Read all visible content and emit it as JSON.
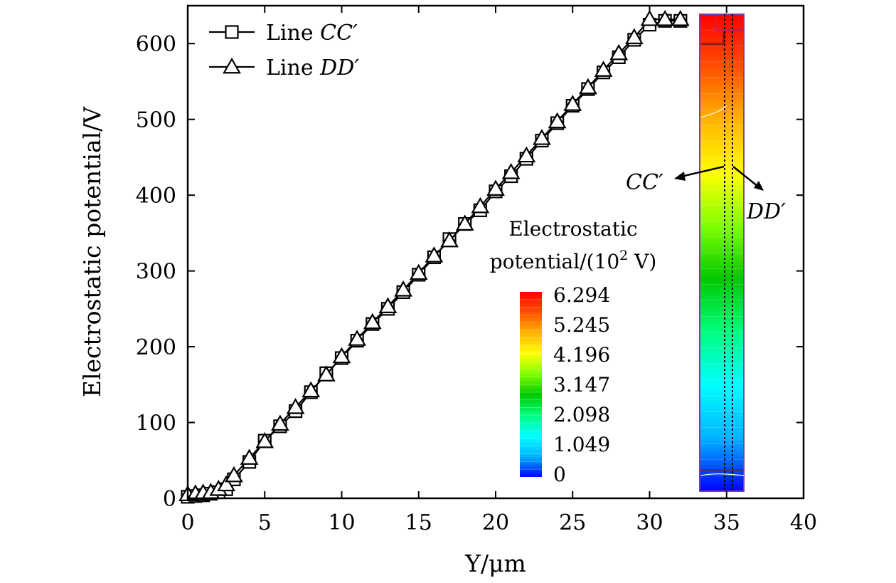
{
  "chart_data": {
    "type": "line",
    "xlabel": "Y/μm",
    "ylabel": "Electrostatic potential/V",
    "xlim": [
      0,
      40
    ],
    "ylim": [
      0,
      650
    ],
    "xticks": [
      0,
      5,
      10,
      15,
      20,
      25,
      30,
      35,
      40
    ],
    "yticks": [
      0,
      100,
      200,
      300,
      400,
      500,
      600
    ],
    "grid": false,
    "legend_position": "top-left",
    "series": [
      {
        "name": "Line CC′",
        "marker": "square",
        "x": [
          0,
          0.5,
          1,
          1.5,
          2,
          2.5,
          3,
          4,
          5,
          6,
          7,
          8,
          9,
          10,
          11,
          12,
          13,
          14,
          15,
          16,
          17,
          18,
          19,
          20,
          21,
          22,
          23,
          24,
          25,
          26,
          27,
          28,
          29,
          30,
          31,
          32
        ],
        "y": [
          2,
          3,
          4,
          6,
          8,
          12,
          25,
          48,
          76,
          95,
          115,
          140,
          165,
          185,
          208,
          230,
          250,
          272,
          295,
          318,
          342,
          362,
          380,
          405,
          425,
          448,
          472,
          495,
          518,
          540,
          562,
          582,
          605,
          625,
          630,
          630
        ]
      },
      {
        "name": "Line DD′",
        "marker": "triangle",
        "x": [
          0,
          0.5,
          1,
          1.5,
          2,
          2.5,
          3,
          4,
          5,
          6,
          7,
          8,
          9,
          10,
          11,
          12,
          13,
          14,
          15,
          16,
          17,
          18,
          19,
          20,
          21,
          22,
          23,
          24,
          25,
          26,
          27,
          28,
          29,
          30,
          31,
          32
        ],
        "y": [
          5,
          6,
          7,
          8,
          12,
          18,
          30,
          53,
          75,
          98,
          120,
          142,
          163,
          187,
          210,
          232,
          253,
          275,
          297,
          320,
          340,
          362,
          385,
          408,
          430,
          452,
          475,
          497,
          520,
          542,
          565,
          587,
          608,
          632,
          632,
          632
        ]
      }
    ],
    "colorbar": {
      "title_line1": "Electrostatic",
      "title_line2_prefix": "potential/(10",
      "title_line2_sup": "2",
      "title_line2_suffix": " V)",
      "labels": [
        "6.294",
        "5.245",
        "4.196",
        "3.147",
        "2.098",
        "1.049",
        "0"
      ],
      "min": 0,
      "max": 6.294
    },
    "annotations": [
      {
        "text": "CC′"
      },
      {
        "text": "DD′"
      }
    ],
    "legend": [
      {
        "prefix": "Line ",
        "label": "CC′"
      },
      {
        "prefix": "Line ",
        "label": "DD′"
      }
    ]
  },
  "colors": {
    "axis": "#000000",
    "line": "#000000",
    "marker_fill": "#ffffff",
    "colormap": [
      "#0000ff",
      "#00b4ff",
      "#00ffff",
      "#00ff80",
      "#00c800",
      "#80ff00",
      "#ffff00",
      "#ffb400",
      "#ff5000",
      "#ff0000"
    ]
  }
}
